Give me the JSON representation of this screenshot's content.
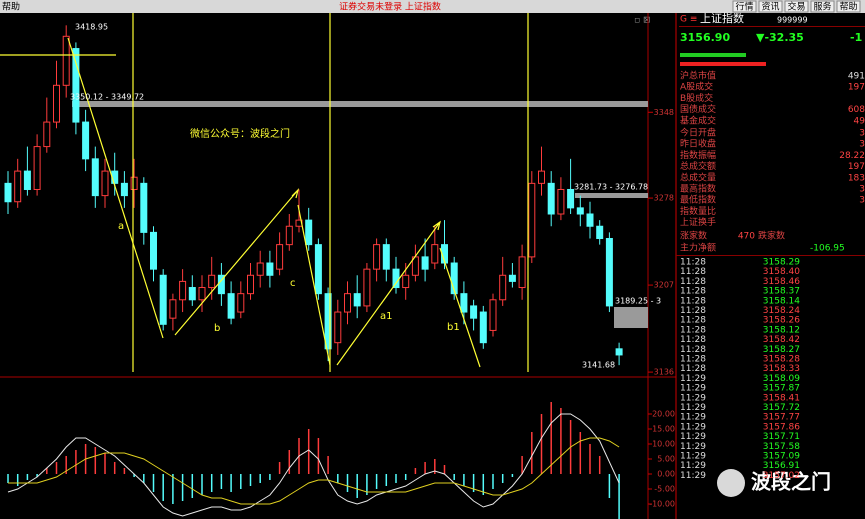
{
  "menu": {
    "left": "帮助",
    "center": "证券交易未登录  上证指数",
    "buttons": [
      "行情",
      "资讯",
      "交易",
      "服务",
      "帮助"
    ]
  },
  "kline": {
    "ylim": [
      3132,
      3429
    ],
    "yticks": [
      3136,
      3207,
      3278,
      3348
    ],
    "annotations": [
      "3418.95",
      "3350.12 - 3349.72",
      "3281.73 - 3276.78",
      "3189.25 - 3",
      "3141.68"
    ],
    "note": "微信公众号：波段之门",
    "wave_labels": [
      "a",
      "b",
      "c",
      "a1",
      "b1"
    ],
    "candles": [
      [
        3290,
        3275,
        3300,
        3265
      ],
      [
        3275,
        3300,
        3310,
        3270
      ],
      [
        3300,
        3285,
        3320,
        3280
      ],
      [
        3285,
        3320,
        3330,
        3280
      ],
      [
        3320,
        3340,
        3360,
        3315
      ],
      [
        3340,
        3370,
        3390,
        3335
      ],
      [
        3370,
        3410,
        3418.95,
        3360
      ],
      [
        3400,
        3340,
        3405,
        3330
      ],
      [
        3340,
        3310,
        3350,
        3300
      ],
      [
        3310,
        3280,
        3320,
        3270
      ],
      [
        3280,
        3300,
        3310,
        3270
      ],
      [
        3300,
        3290,
        3315,
        3280
      ],
      [
        3290,
        3280,
        3300,
        3270
      ],
      [
        3285,
        3295,
        3310,
        3270
      ],
      [
        3290,
        3250,
        3295,
        3240
      ],
      [
        3250,
        3220,
        3255,
        3210
      ],
      [
        3215,
        3175,
        3220,
        3170
      ],
      [
        3180,
        3195,
        3200,
        3170
      ],
      [
        3195,
        3210,
        3220,
        3185
      ],
      [
        3205,
        3195,
        3215,
        3190
      ],
      [
        3195,
        3205,
        3215,
        3185
      ],
      [
        3205,
        3215,
        3230,
        3195
      ],
      [
        3215,
        3200,
        3225,
        3190
      ],
      [
        3200,
        3180,
        3210,
        3175
      ],
      [
        3185,
        3200,
        3210,
        3180
      ],
      [
        3200,
        3215,
        3225,
        3195
      ],
      [
        3215,
        3225,
        3235,
        3205
      ],
      [
        3225,
        3215,
        3235,
        3205
      ],
      [
        3220,
        3240,
        3250,
        3215
      ],
      [
        3240,
        3255,
        3265,
        3235
      ],
      [
        3255,
        3260,
        3285,
        3250
      ],
      [
        3260,
        3240,
        3270,
        3235
      ],
      [
        3240,
        3200,
        3245,
        3195
      ],
      [
        3200,
        3155,
        3205,
        3145
      ],
      [
        3160,
        3185,
        3195,
        3150
      ],
      [
        3185,
        3200,
        3210,
        3175
      ],
      [
        3200,
        3190,
        3215,
        3180
      ],
      [
        3190,
        3220,
        3225,
        3185
      ],
      [
        3220,
        3240,
        3245,
        3210
      ],
      [
        3240,
        3220,
        3245,
        3210
      ],
      [
        3220,
        3205,
        3230,
        3200
      ],
      [
        3205,
        3215,
        3225,
        3195
      ],
      [
        3215,
        3230,
        3240,
        3210
      ],
      [
        3230,
        3220,
        3245,
        3210
      ],
      [
        3225,
        3240,
        3255,
        3220
      ],
      [
        3240,
        3225,
        3260,
        3220
      ],
      [
        3225,
        3200,
        3230,
        3195
      ],
      [
        3200,
        3185,
        3210,
        3175
      ],
      [
        3190,
        3180,
        3195,
        3170
      ],
      [
        3185,
        3160,
        3190,
        3155
      ],
      [
        3170,
        3195,
        3200,
        3165
      ],
      [
        3195,
        3215,
        3230,
        3190
      ],
      [
        3215,
        3210,
        3225,
        3205
      ],
      [
        3205,
        3230,
        3240,
        3195
      ],
      [
        3230,
        3290,
        3300,
        3225
      ],
      [
        3290,
        3300,
        3320,
        3280
      ],
      [
        3290,
        3265,
        3300,
        3255
      ],
      [
        3265,
        3285,
        3295,
        3260
      ],
      [
        3285,
        3270,
        3310,
        3265
      ],
      [
        3270,
        3265,
        3280,
        3255
      ],
      [
        3265,
        3255,
        3275,
        3245
      ],
      [
        3255,
        3245,
        3260,
        3240
      ],
      [
        3245,
        3190,
        3250,
        3185
      ],
      [
        3155,
        3150,
        3160,
        3141.68
      ]
    ]
  },
  "macd": {
    "ylim": [
      -15,
      32
    ],
    "yticks": [
      {
        "value": 20,
        "label": "20.00"
      },
      {
        "value": 15,
        "label": "15.00"
      },
      {
        "value": 10,
        "label": "10.00"
      },
      {
        "value": 5,
        "label": "5.00"
      },
      {
        "value": 0,
        "label": "0.00"
      },
      {
        "value": -5,
        "label": "-5.00"
      },
      {
        "value": -10,
        "label": "-10.00"
      }
    ],
    "hist": [
      -3,
      -4,
      -2,
      -1,
      2,
      4,
      6,
      8,
      10,
      9,
      7,
      4,
      2,
      -1,
      -3,
      -6,
      -9,
      -10,
      -9,
      -8,
      -7,
      -6,
      -5,
      -6,
      -5,
      -4,
      -3,
      -2,
      4,
      8,
      12,
      15,
      12,
      6,
      -3,
      -6,
      -8,
      -7,
      -5,
      -4,
      -3,
      -2,
      2,
      4,
      5,
      3,
      -2,
      -4,
      -6,
      -7,
      -5,
      -3,
      -1,
      6,
      14,
      20,
      24,
      22,
      18,
      14,
      10,
      6,
      -8,
      -15
    ],
    "dif": [
      -6,
      -5,
      -3,
      -1,
      2,
      5,
      9,
      12,
      12,
      10,
      8,
      6,
      3,
      0,
      -3,
      -7,
      -11,
      -13,
      -14,
      -13,
      -12,
      -11,
      -11,
      -12,
      -12,
      -11,
      -9,
      -7,
      -3,
      2,
      6,
      8,
      5,
      -2,
      -7,
      -9,
      -10,
      -9,
      -7,
      -6,
      -5,
      -4,
      -2,
      0,
      1,
      0,
      -3,
      -6,
      -9,
      -11,
      -10,
      -7,
      -4,
      0,
      6,
      12,
      17,
      20,
      20,
      18,
      15,
      11,
      4,
      -3
    ],
    "dea": [
      -3,
      -3,
      -3,
      -3,
      -2,
      -1,
      1,
      3,
      5,
      6,
      7,
      7,
      7,
      6,
      5,
      3,
      1,
      -1,
      -3,
      -5,
      -7,
      -8,
      -8,
      -9,
      -10,
      -10,
      -10,
      -10,
      -9,
      -7,
      -5,
      -3,
      -2,
      -2,
      -3,
      -4,
      -5,
      -6,
      -6,
      -6,
      -6,
      -6,
      -5,
      -4,
      -3,
      -3,
      -3,
      -4,
      -5,
      -6,
      -7,
      -7,
      -6,
      -5,
      -3,
      0,
      3,
      6,
      9,
      11,
      12,
      12,
      11,
      9
    ]
  },
  "quote": {
    "name": "上证指数",
    "code": "999999",
    "price": "3156.90",
    "change": "▼-32.35",
    "pct": "-1",
    "rows": [
      {
        "label": "沪总市值",
        "value": "491"
      },
      {
        "label": "A股成交",
        "value": "197"
      },
      {
        "label": "B股成交"
      },
      {
        "label": "国债成交",
        "value": "608"
      },
      {
        "label": "基金成交",
        "value": "49"
      },
      {
        "label": "今日开盘",
        "value": "3"
      },
      {
        "label": "昨日收盘",
        "value": "3"
      },
      {
        "label": "指数振幅",
        "value": "28.22"
      },
      {
        "label": "总成交额",
        "value": "197"
      },
      {
        "label": "总成交量",
        "value": "183"
      },
      {
        "label": "最高指数",
        "value": "3"
      },
      {
        "label": "最低指数",
        "value": "3"
      },
      {
        "label": "指数量比"
      },
      {
        "label": "上证换手"
      }
    ],
    "up_label": "涨家数",
    "up_count": "470",
    "down_label": "跌家数",
    "net_label": "主力净额",
    "net_value": "-106.95"
  },
  "ticks": {
    "times": [
      "11:28",
      "11:28",
      "11:28",
      "11:28",
      "11:28",
      "11:28",
      "11:28",
      "11:28",
      "11:28",
      "11:28",
      "11:28",
      "11:28",
      "11:29",
      "11:29",
      "11:29",
      "11:29",
      "11:29",
      "11:29",
      "11:29",
      "11:29",
      "11:29",
      "11:29",
      "11:29"
    ],
    "prices": [
      "3158.29",
      "3158.40",
      "3158.46",
      "3158.37",
      "3158.14",
      "3158.24",
      "3158.26",
      "3158.12",
      "3158.42",
      "3158.27",
      "3158.28",
      "3158.33",
      "3158.09",
      "3157.87",
      "3158.41",
      "3157.72",
      "3157.77",
      "3157.86",
      "3157.71",
      "3157.58",
      "3157.09",
      "3156.91",
      "3157.02"
    ]
  },
  "watermark": "波段之门"
}
